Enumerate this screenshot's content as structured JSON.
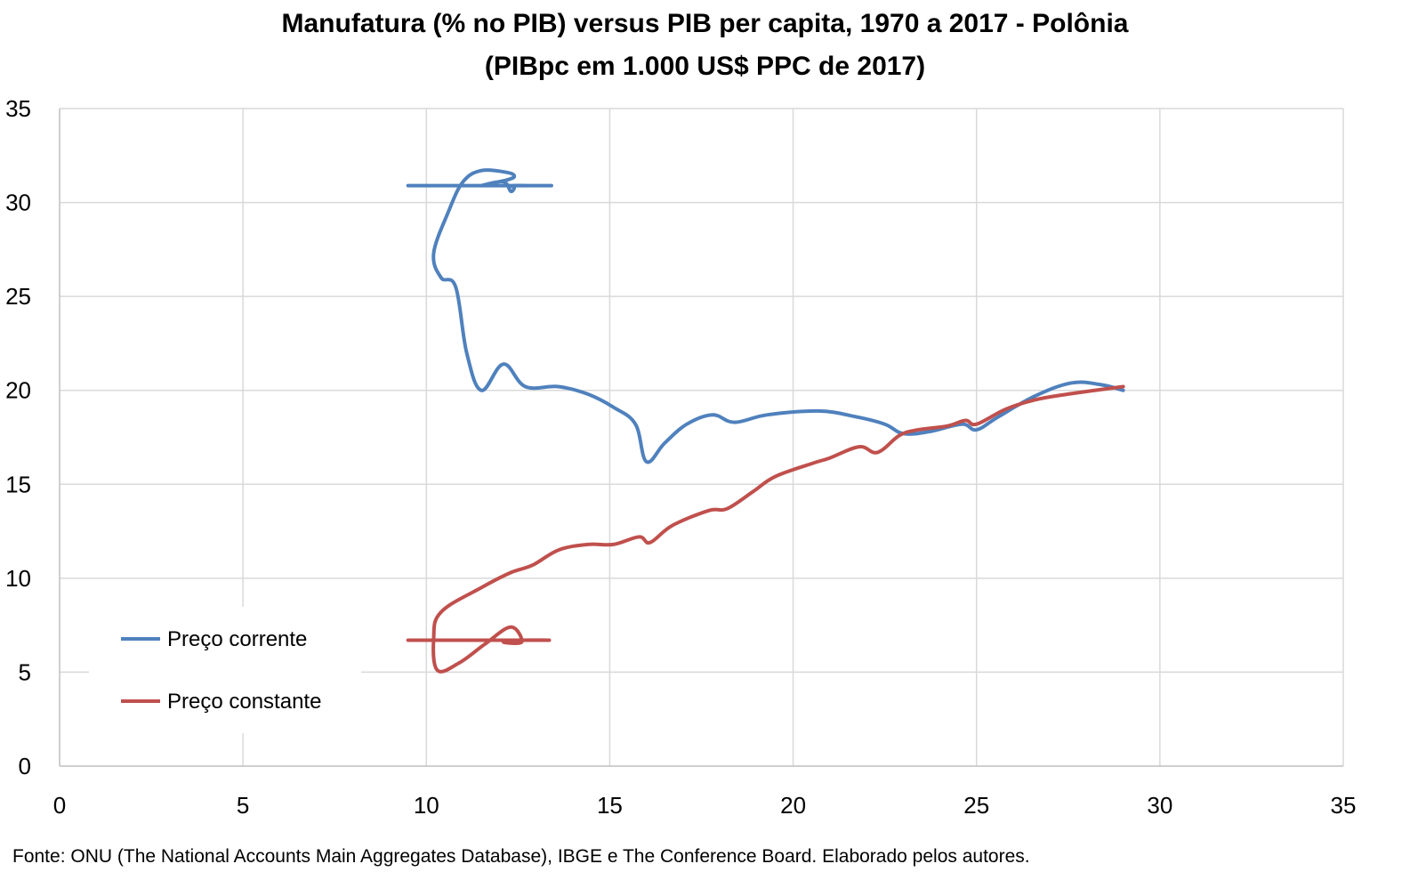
{
  "chart_data": {
    "type": "line",
    "title_line_1": "Manufatura (% no PIB) versus PIB per capita, 1970 a 2017 - Polônia",
    "title_line_2": "(PIBpc em 1.000 US$ PPC de 2017)",
    "source": "Fonte: ONU (The National Accounts Main Aggregates Database), IBGE e The Conference Board. Elaborado pelos autores.",
    "xlabel": "",
    "ylabel": "",
    "xlim": [
      0,
      35
    ],
    "ylim": [
      0,
      35
    ],
    "x_ticks": [
      "0",
      "5",
      "10",
      "15",
      "20",
      "25",
      "30",
      "35"
    ],
    "y_ticks": [
      "0",
      "5",
      "10",
      "15",
      "20",
      "25",
      "30",
      "35"
    ],
    "grid": true,
    "legend_position": "bottom-left",
    "series": [
      {
        "name": "Preço corrente",
        "color": "#4F81BD",
        "points": [
          [
            9.5,
            30.9
          ],
          [
            13.2,
            30.9
          ],
          [
            12.8,
            30.9
          ],
          [
            12.3,
            30.9
          ],
          [
            12.4,
            30.8
          ],
          [
            12.3,
            30.6
          ],
          [
            12.1,
            31.1
          ],
          [
            11.5,
            30.9
          ],
          [
            12.2,
            31.2
          ],
          [
            12.4,
            31.4
          ],
          [
            12.2,
            31.6
          ],
          [
            11.5,
            31.7
          ],
          [
            11.0,
            31.1
          ],
          [
            10.6,
            29.5
          ],
          [
            10.2,
            27.3
          ],
          [
            10.4,
            26.0
          ],
          [
            10.8,
            25.5
          ],
          [
            11.1,
            22.0
          ],
          [
            11.5,
            20.0
          ],
          [
            12.1,
            21.4
          ],
          [
            12.7,
            20.2
          ],
          [
            13.6,
            20.2
          ],
          [
            14.4,
            19.8
          ],
          [
            15.1,
            19.1
          ],
          [
            15.7,
            18.2
          ],
          [
            16.0,
            16.2
          ],
          [
            16.5,
            17.2
          ],
          [
            17.1,
            18.2
          ],
          [
            17.8,
            18.7
          ],
          [
            18.4,
            18.3
          ],
          [
            19.3,
            18.7
          ],
          [
            20.7,
            18.9
          ],
          [
            21.7,
            18.6
          ],
          [
            22.5,
            18.2
          ],
          [
            23.0,
            17.7
          ],
          [
            23.7,
            17.8
          ],
          [
            24.6,
            18.2
          ],
          [
            25.0,
            17.9
          ],
          [
            25.6,
            18.6
          ],
          [
            26.6,
            19.7
          ],
          [
            27.6,
            20.4
          ],
          [
            28.4,
            20.3
          ],
          [
            29.0,
            20.0
          ]
        ]
      },
      {
        "name": "Preço constante",
        "color": "#C0504D",
        "points": [
          [
            9.5,
            6.7
          ],
          [
            13.2,
            6.7
          ],
          [
            12.5,
            6.7
          ],
          [
            12.1,
            6.6
          ],
          [
            12.6,
            6.6
          ],
          [
            12.3,
            7.4
          ],
          [
            11.6,
            6.5
          ],
          [
            10.9,
            5.5
          ],
          [
            10.3,
            5.1
          ],
          [
            10.2,
            6.8
          ],
          [
            10.4,
            8.2
          ],
          [
            11.5,
            9.5
          ],
          [
            12.3,
            10.3
          ],
          [
            12.9,
            10.7
          ],
          [
            13.6,
            11.5
          ],
          [
            14.4,
            11.8
          ],
          [
            15.1,
            11.8
          ],
          [
            15.8,
            12.2
          ],
          [
            16.1,
            11.9
          ],
          [
            16.7,
            12.8
          ],
          [
            17.7,
            13.6
          ],
          [
            18.2,
            13.7
          ],
          [
            18.9,
            14.6
          ],
          [
            19.5,
            15.4
          ],
          [
            20.5,
            16.1
          ],
          [
            21.0,
            16.4
          ],
          [
            21.8,
            17.0
          ],
          [
            22.3,
            16.7
          ],
          [
            22.9,
            17.6
          ],
          [
            23.4,
            17.9
          ],
          [
            24.2,
            18.1
          ],
          [
            24.7,
            18.4
          ],
          [
            25.0,
            18.2
          ],
          [
            25.8,
            19.0
          ],
          [
            26.6,
            19.5
          ],
          [
            27.5,
            19.8
          ],
          [
            29.0,
            20.2
          ]
        ]
      }
    ]
  }
}
